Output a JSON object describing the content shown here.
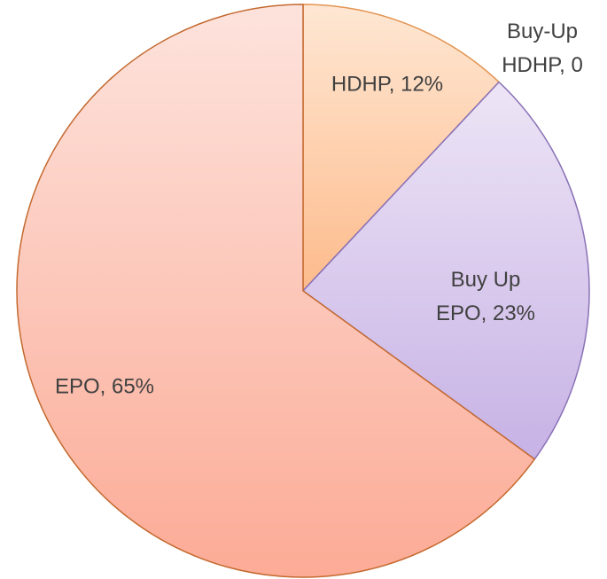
{
  "chart_data": {
    "type": "pie",
    "categories": [
      "HDHP, 12%",
      "Buy-Up HDHP, 0",
      "Buy Up EPO, 23%",
      "EPO, 65%"
    ],
    "values": [
      12,
      0,
      23,
      65
    ],
    "colors": [
      [
        "#fee7d3",
        "#fdbb8c"
      ],
      [
        "#c9a6e0",
        "#a37fc9"
      ],
      [
        "#ede5f6",
        "#c7b2e5"
      ],
      [
        "#fde3dd",
        "#fcab96"
      ]
    ],
    "edge_colors": [
      "#e39452",
      "#8a72b6",
      "#8a72b6",
      "#c4692f"
    ]
  }
}
